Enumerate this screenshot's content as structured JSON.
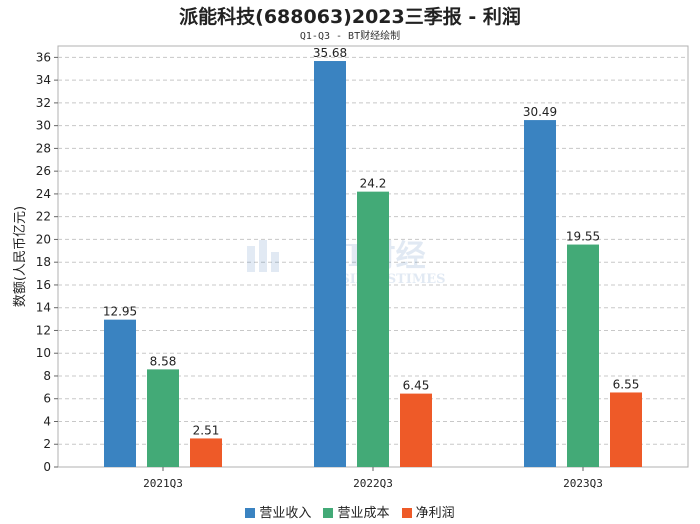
{
  "chart_data": {
    "type": "bar",
    "title": "派能科技(688063)2023三季报 - 利润",
    "subtitle": "Q1-Q3 - BT财经绘制",
    "ylabel": "数额(人民币亿元)",
    "xlabel": "",
    "ylim": [
      0,
      37
    ],
    "yticks": [
      0,
      2,
      4,
      6,
      8,
      10,
      12,
      14,
      16,
      18,
      20,
      22,
      24,
      26,
      28,
      30,
      32,
      34,
      36
    ],
    "grid": true,
    "legend_position": "bottom",
    "categories": [
      "2021Q3",
      "2022Q3",
      "2023Q3"
    ],
    "series": [
      {
        "name": "营业收入",
        "color": "#3A83C1",
        "values": [
          12.95,
          35.68,
          30.49
        ]
      },
      {
        "name": "营业成本",
        "color": "#43AA77",
        "values": [
          8.58,
          24.2,
          19.55
        ]
      },
      {
        "name": "净利润",
        "color": "#EE5A28",
        "values": [
          2.51,
          6.45,
          6.55
        ]
      }
    ],
    "watermark": {
      "cn": "BT财经",
      "en": "BUSINESSTIMES"
    }
  }
}
